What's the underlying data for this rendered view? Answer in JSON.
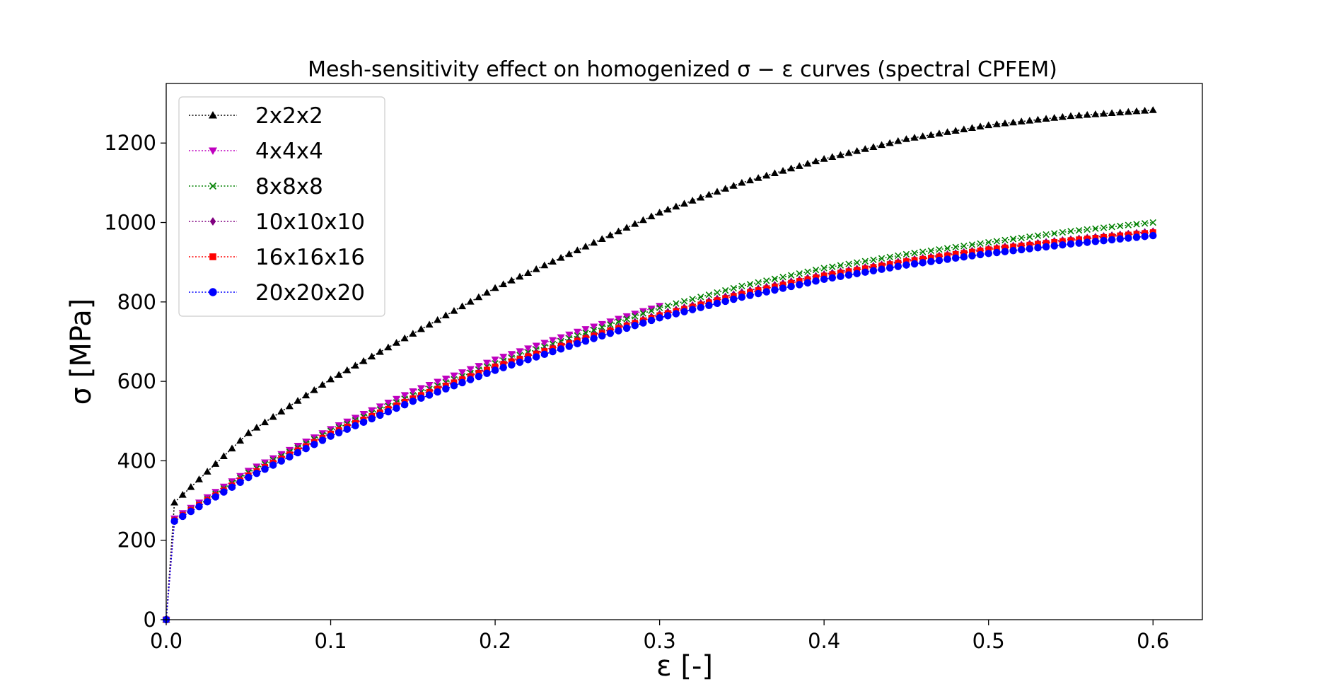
{
  "chart_data": {
    "type": "line",
    "title": "Mesh-sensitivity effect on homogenized σ − ε curves (spectral CPFEM)",
    "xlabel": "ε [-]",
    "ylabel": "σ [MPa]",
    "xlim": [
      0.0,
      0.63
    ],
    "ylim": [
      0,
      1350
    ],
    "xticks": [
      "0.0",
      "0.1",
      "0.2",
      "0.3",
      "0.4",
      "0.5",
      "0.6"
    ],
    "yticks": [
      "0",
      "200",
      "400",
      "600",
      "800",
      "1000",
      "1200"
    ],
    "grid": false,
    "legend_position": "top-left",
    "series": [
      {
        "name": "2x2x2",
        "color": "#000000",
        "marker": "triangle-up",
        "x": [
          0.0,
          0.005,
          0.05,
          0.1,
          0.15,
          0.2,
          0.25,
          0.3,
          0.35,
          0.4,
          0.45,
          0.5,
          0.55,
          0.6
        ],
        "y": [
          0,
          295,
          470,
          605,
          720,
          835,
          930,
          1025,
          1100,
          1160,
          1210,
          1245,
          1268,
          1283
        ]
      },
      {
        "name": "4x4x4",
        "color": "#bf00bf",
        "marker": "triangle-down",
        "x": [
          0.0,
          0.002,
          0.005,
          0.05,
          0.1,
          0.15,
          0.2,
          0.25,
          0.3
        ],
        "y": [
          0,
          235,
          255,
          375,
          480,
          575,
          655,
          725,
          790
        ]
      },
      {
        "name": "8x8x8",
        "color": "#008000",
        "marker": "x",
        "x": [
          0.0,
          0.005,
          0.05,
          0.1,
          0.15,
          0.2,
          0.25,
          0.3,
          0.35,
          0.4,
          0.45,
          0.5,
          0.55,
          0.6
        ],
        "y": [
          0,
          250,
          370,
          475,
          565,
          645,
          715,
          785,
          840,
          885,
          920,
          950,
          978,
          1000
        ]
      },
      {
        "name": "10x10x10",
        "color": "#800080",
        "marker": "diamond",
        "x": [
          0.0,
          0.005,
          0.05,
          0.1,
          0.15,
          0.2,
          0.25,
          0.3,
          0.35,
          0.4,
          0.45,
          0.5,
          0.55,
          0.6
        ],
        "y": [
          0,
          250,
          365,
          470,
          560,
          640,
          705,
          770,
          825,
          870,
          905,
          935,
          958,
          978
        ]
      },
      {
        "name": "16x16x16",
        "color": "#ff0000",
        "marker": "square",
        "x": [
          0.0,
          0.005,
          0.05,
          0.1,
          0.15,
          0.2,
          0.25,
          0.3,
          0.35,
          0.4,
          0.45,
          0.5,
          0.55,
          0.6
        ],
        "y": [
          0,
          250,
          363,
          468,
          557,
          637,
          702,
          766,
          820,
          866,
          902,
          932,
          955,
          975
        ]
      },
      {
        "name": "20x20x20",
        "color": "#0000ff",
        "marker": "circle",
        "x": [
          0.0,
          0.005,
          0.05,
          0.1,
          0.15,
          0.2,
          0.25,
          0.3,
          0.35,
          0.4,
          0.45,
          0.5,
          0.55,
          0.6
        ],
        "y": [
          0,
          248,
          358,
          462,
          550,
          628,
          695,
          760,
          812,
          857,
          893,
          922,
          946,
          967
        ]
      }
    ]
  }
}
